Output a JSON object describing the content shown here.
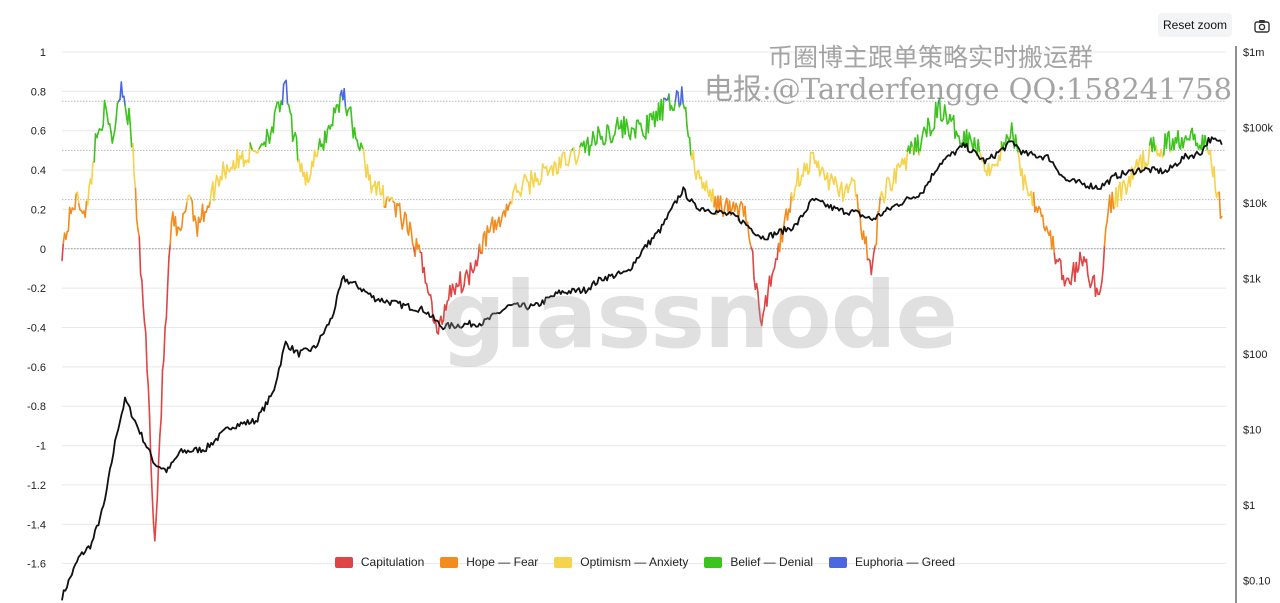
{
  "toolbar": {
    "reset_zoom_label": "Reset zoom",
    "camera_icon": "camera-icon"
  },
  "watermarks": {
    "line1": "币圈博主跟单策略实时搬运群",
    "line2": "电报:@Tarderfengge QQ:158241758",
    "logo": "glassnode"
  },
  "chart_data": {
    "type": "line",
    "title": "",
    "xlabel": "",
    "ylabel": "",
    "left_axis": {
      "ticks": [
        "1",
        "0.8",
        "0.6",
        "0.4",
        "0.2",
        "0",
        "-0.2",
        "-0.4",
        "-0.6",
        "-0.8",
        "-1",
        "-1.2",
        "-1.4",
        "-1.6"
      ],
      "range": [
        -1.8,
        1
      ]
    },
    "right_axis": {
      "scale": "log",
      "ticks": [
        "$1m",
        "$100k",
        "$10k",
        "$1k",
        "$100",
        "$10",
        "$1",
        "$0.10"
      ],
      "range": [
        0.05,
        1000000
      ]
    },
    "x_range": [
      2010.6,
      2024.4
    ],
    "grid": true,
    "legend_position": "bottom",
    "legend": [
      {
        "name": "Capitulation",
        "color": "#e04444",
        "range": [
          -10,
          0
        ]
      },
      {
        "name": "Hope — Fear",
        "color": "#f28c1e",
        "range": [
          0,
          0.25
        ]
      },
      {
        "name": "Optimism — Anxiety",
        "color": "#f5d34a",
        "range": [
          0.25,
          0.5
        ]
      },
      {
        "name": "Belief — Denial",
        "color": "#3cc31d",
        "range": [
          0.5,
          0.75
        ]
      },
      {
        "name": "Euphoria — Greed",
        "color": "#4a67e0",
        "range": [
          0.75,
          10
        ]
      }
    ],
    "nupl": {
      "x": [
        2010.6,
        2010.75,
        2010.9,
        2011.0,
        2011.1,
        2011.2,
        2011.3,
        2011.42,
        2011.5,
        2011.6,
        2011.7,
        2011.8,
        2011.9,
        2012.0,
        2012.1,
        2012.2,
        2012.3,
        2012.5,
        2012.7,
        2012.9,
        2013.1,
        2013.25,
        2013.35,
        2013.5,
        2013.7,
        2013.8,
        2013.93,
        2014.1,
        2014.3,
        2014.5,
        2014.7,
        2014.9,
        2015.05,
        2015.2,
        2015.4,
        2015.6,
        2015.8,
        2016.0,
        2016.3,
        2016.6,
        2016.9,
        2017.2,
        2017.5,
        2017.7,
        2017.96,
        2018.1,
        2018.3,
        2018.5,
        2018.7,
        2018.9,
        2019.0,
        2019.3,
        2019.5,
        2019.8,
        2020.0,
        2020.2,
        2020.3,
        2020.5,
        2020.8,
        2021.0,
        2021.2,
        2021.4,
        2021.6,
        2021.87,
        2022.0,
        2022.2,
        2022.4,
        2022.5,
        2022.7,
        2022.9,
        2023.0,
        2023.2,
        2023.5,
        2023.8,
        2024.0,
        2024.2,
        2024.35
      ],
      "y": [
        0.0,
        0.25,
        0.2,
        0.55,
        0.7,
        0.55,
        0.85,
        0.6,
        0.1,
        -0.5,
        -1.5,
        -0.6,
        0.15,
        0.05,
        0.3,
        0.12,
        0.2,
        0.4,
        0.45,
        0.5,
        0.62,
        0.82,
        0.55,
        0.35,
        0.55,
        0.65,
        0.8,
        0.55,
        0.3,
        0.25,
        0.1,
        -0.1,
        -0.45,
        -0.2,
        -0.15,
        0.05,
        0.15,
        0.3,
        0.38,
        0.45,
        0.55,
        0.62,
        0.6,
        0.7,
        0.78,
        0.4,
        0.25,
        0.2,
        0.2,
        -0.4,
        -0.15,
        0.35,
        0.45,
        0.3,
        0.3,
        -0.15,
        0.25,
        0.4,
        0.55,
        0.72,
        0.6,
        0.55,
        0.4,
        0.6,
        0.35,
        0.2,
        -0.05,
        -0.2,
        -0.05,
        -0.25,
        0.2,
        0.32,
        0.5,
        0.55,
        0.6,
        0.5,
        0.18
      ]
    },
    "price": {
      "x": [
        2010.6,
        2010.8,
        2010.95,
        2011.1,
        2011.25,
        2011.35,
        2011.45,
        2011.55,
        2011.7,
        2011.85,
        2012.0,
        2012.3,
        2012.6,
        2012.9,
        2013.1,
        2013.25,
        2013.4,
        2013.6,
        2013.8,
        2013.93,
        2014.1,
        2014.3,
        2014.6,
        2014.9,
        2015.1,
        2015.3,
        2015.6,
        2015.9,
        2016.2,
        2016.5,
        2016.8,
        2017.0,
        2017.3,
        2017.5,
        2017.7,
        2017.96,
        2018.1,
        2018.3,
        2018.6,
        2018.9,
        2019.0,
        2019.3,
        2019.5,
        2019.8,
        2020.0,
        2020.2,
        2020.5,
        2020.8,
        2021.0,
        2021.3,
        2021.55,
        2021.87,
        2022.0,
        2022.3,
        2022.5,
        2022.9,
        2023.1,
        2023.4,
        2023.7,
        2023.9,
        2024.1,
        2024.2,
        2024.35
      ],
      "y": [
        0.06,
        0.2,
        0.3,
        1.0,
        9.0,
        25.0,
        14.0,
        8.0,
        3.5,
        2.8,
        5.0,
        5.5,
        11.0,
        13.0,
        30.0,
        140.0,
        100.0,
        120.0,
        300.0,
        1000.0,
        800.0,
        550.0,
        450.0,
        380.0,
        230.0,
        240.0,
        260.0,
        430.0,
        420.0,
        650.0,
        700.0,
        1000.0,
        1200.0,
        2500.0,
        4500.0,
        15000.0,
        9000.0,
        8000.0,
        6500.0,
        3500.0,
        3700.0,
        5000.0,
        11000.0,
        8000.0,
        7500.0,
        6000.0,
        9500.0,
        14000.0,
        33000.0,
        58000.0,
        35000.0,
        65000.0,
        45000.0,
        40000.0,
        20000.0,
        16000.0,
        23000.0,
        28000.0,
        26000.0,
        40000.0,
        46000.0,
        70000.0,
        62000.0
      ]
    }
  }
}
